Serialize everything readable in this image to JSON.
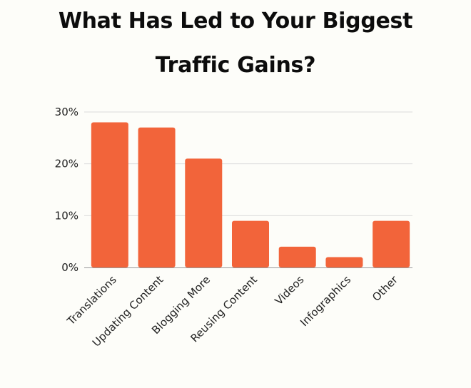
{
  "chart_data": {
    "type": "bar",
    "title_lines": [
      "What Has Led to Your Biggest",
      "Traffic Gains?"
    ],
    "categories": [
      "Translations",
      "Updating Content",
      "Blogging More",
      "Reusing Content",
      "Videos",
      "Infographics",
      "Other"
    ],
    "values": [
      28,
      27,
      21,
      9,
      4,
      2,
      9
    ],
    "value_unit": "%",
    "ylim": [
      0,
      30
    ],
    "yticks": [
      0,
      10,
      20,
      30
    ],
    "ytick_labels": [
      "0%",
      "10%",
      "20%",
      "30%"
    ],
    "xlabel": "",
    "ylabel": "",
    "grid": true,
    "bar_color": "#f2643a",
    "grid_color": "#dcdcdc",
    "axis_color": "#9a9a9a"
  }
}
